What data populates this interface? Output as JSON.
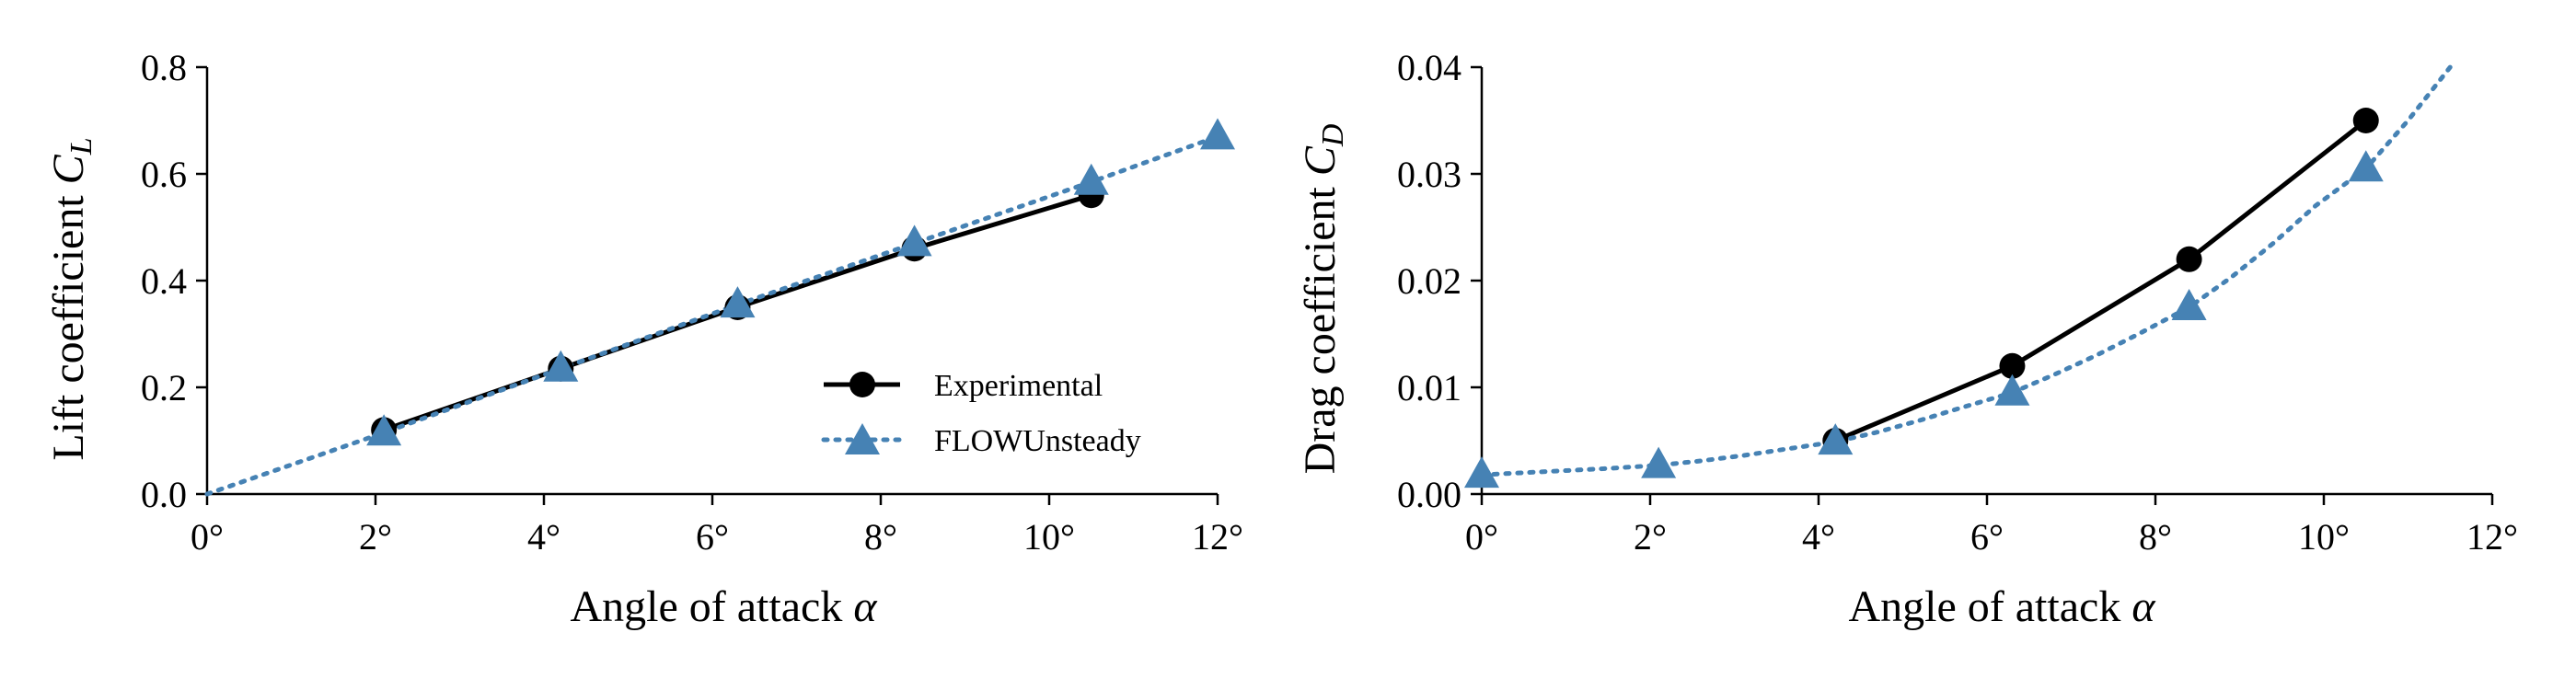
{
  "colors": {
    "experimental": "#000000",
    "flowunsteady": "#4682B4",
    "axis": "#000000"
  },
  "legend": {
    "entries": [
      "Experimental",
      "FLOWUnsteady"
    ],
    "placement": "lower-right of left panel"
  },
  "chart_data": [
    {
      "type": "line",
      "title": "",
      "xlabel": "Angle of attack α",
      "ylabel": "Lift coefficient C_L",
      "xlim": [
        0,
        12
      ],
      "ylim": [
        0,
        0.8
      ],
      "xticks": [
        0,
        2,
        4,
        6,
        8,
        10,
        12
      ],
      "xtick_labels": [
        "0°",
        "2°",
        "4°",
        "6°",
        "8°",
        "10°",
        "12°"
      ],
      "yticks": [
        0,
        0.2,
        0.4,
        0.6,
        0.8
      ],
      "ytick_labels": [
        "0.0",
        "0.2",
        "0.4",
        "0.6",
        "0.8"
      ],
      "grid": false,
      "series": [
        {
          "name": "Experimental",
          "style": "solid",
          "marker": "circle",
          "x": [
            2.1,
            4.2,
            6.3,
            8.4,
            10.5
          ],
          "y": [
            0.12,
            0.235,
            0.35,
            0.46,
            0.56
          ]
        },
        {
          "name": "FLOWUnsteady",
          "style": "dotted",
          "marker": "triangle",
          "x": [
            2.1,
            4.2,
            6.3,
            8.4,
            10.5,
            12.0
          ],
          "y": [
            0.115,
            0.235,
            0.355,
            0.47,
            0.585,
            0.67
          ],
          "line_x": [
            0,
            2.1,
            4.2,
            6.3,
            8.4,
            10.5,
            12.0
          ],
          "line_y": [
            0.0,
            0.115,
            0.235,
            0.355,
            0.47,
            0.585,
            0.67
          ]
        }
      ]
    },
    {
      "type": "line",
      "title": "",
      "xlabel": "Angle of attack α",
      "ylabel": "Drag coefficient C_D",
      "xlim": [
        0,
        12
      ],
      "ylim": [
        0,
        0.04
      ],
      "xticks": [
        0,
        2,
        4,
        6,
        8,
        10,
        12
      ],
      "xtick_labels": [
        "0°",
        "2°",
        "4°",
        "6°",
        "8°",
        "10°",
        "12°"
      ],
      "yticks": [
        0,
        0.01,
        0.02,
        0.03,
        0.04
      ],
      "ytick_labels": [
        "0.00",
        "0.01",
        "0.02",
        "0.03",
        "0.04"
      ],
      "grid": false,
      "series": [
        {
          "name": "Experimental",
          "style": "solid",
          "marker": "circle",
          "x": [
            4.2,
            6.3,
            8.4,
            10.5
          ],
          "y": [
            0.005,
            0.012,
            0.022,
            0.035
          ]
        },
        {
          "name": "FLOWUnsteady",
          "style": "dotted",
          "marker": "triangle",
          "x": [
            0.0,
            2.1,
            4.2,
            6.3,
            8.4,
            10.5
          ],
          "y": [
            0.0018,
            0.0027,
            0.0049,
            0.0095,
            0.0175,
            0.0305
          ],
          "line_x": [
            0.0,
            0.5,
            1.0,
            1.5,
            2.1,
            2.6,
            3.1,
            3.6,
            4.2,
            4.7,
            5.2,
            5.7,
            6.3,
            6.8,
            7.3,
            7.8,
            8.4,
            8.9,
            9.4,
            9.9,
            10.5,
            11.0,
            11.5
          ],
          "line_y": [
            0.0018,
            0.002,
            0.0022,
            0.0024,
            0.0027,
            0.0031,
            0.0036,
            0.0042,
            0.0049,
            0.0058,
            0.0069,
            0.0081,
            0.0095,
            0.0112,
            0.013,
            0.015,
            0.0175,
            0.0203,
            0.0235,
            0.027,
            0.0305,
            0.035,
            0.04
          ]
        }
      ]
    }
  ]
}
